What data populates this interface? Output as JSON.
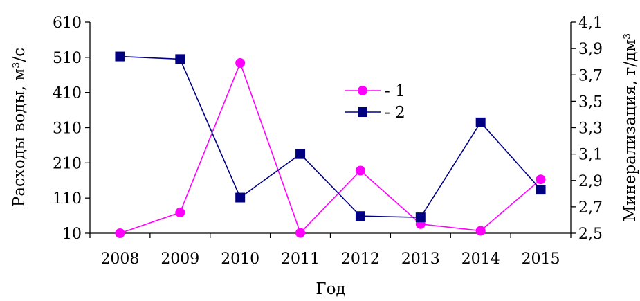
{
  "chart_data": {
    "type": "line",
    "categories": [
      "2008",
      "2009",
      "2010",
      "2011",
      "2012",
      "2013",
      "2014",
      "2015"
    ],
    "xlabel": "Год",
    "ylabel_left": "Расходы воды, м³/с",
    "ylabel_right": "Минерализация, г/дм³",
    "ylim_left": [
      10,
      610
    ],
    "yticks_left": [
      "10",
      "110",
      "210",
      "310",
      "410",
      "510",
      "610"
    ],
    "ylim_right": [
      2.5,
      4.1
    ],
    "yticks_right": [
      "2,5",
      "2,7",
      "2,9",
      "3,1",
      "3,3",
      "3,5",
      "3,7",
      "3,9",
      "4,1"
    ],
    "grid": false,
    "legend_position": "center-top",
    "series": [
      {
        "name": "- 1",
        "axis": "left",
        "color": "#ff00ff",
        "marker": "circle",
        "values": [
          10,
          69,
          494,
          11,
          188,
          36,
          17,
          163
        ]
      },
      {
        "name": "- 2",
        "axis": "right",
        "color": "#000080",
        "marker": "square",
        "values": [
          3.84,
          3.82,
          2.77,
          3.1,
          2.63,
          2.62,
          3.34,
          2.83
        ]
      }
    ]
  }
}
